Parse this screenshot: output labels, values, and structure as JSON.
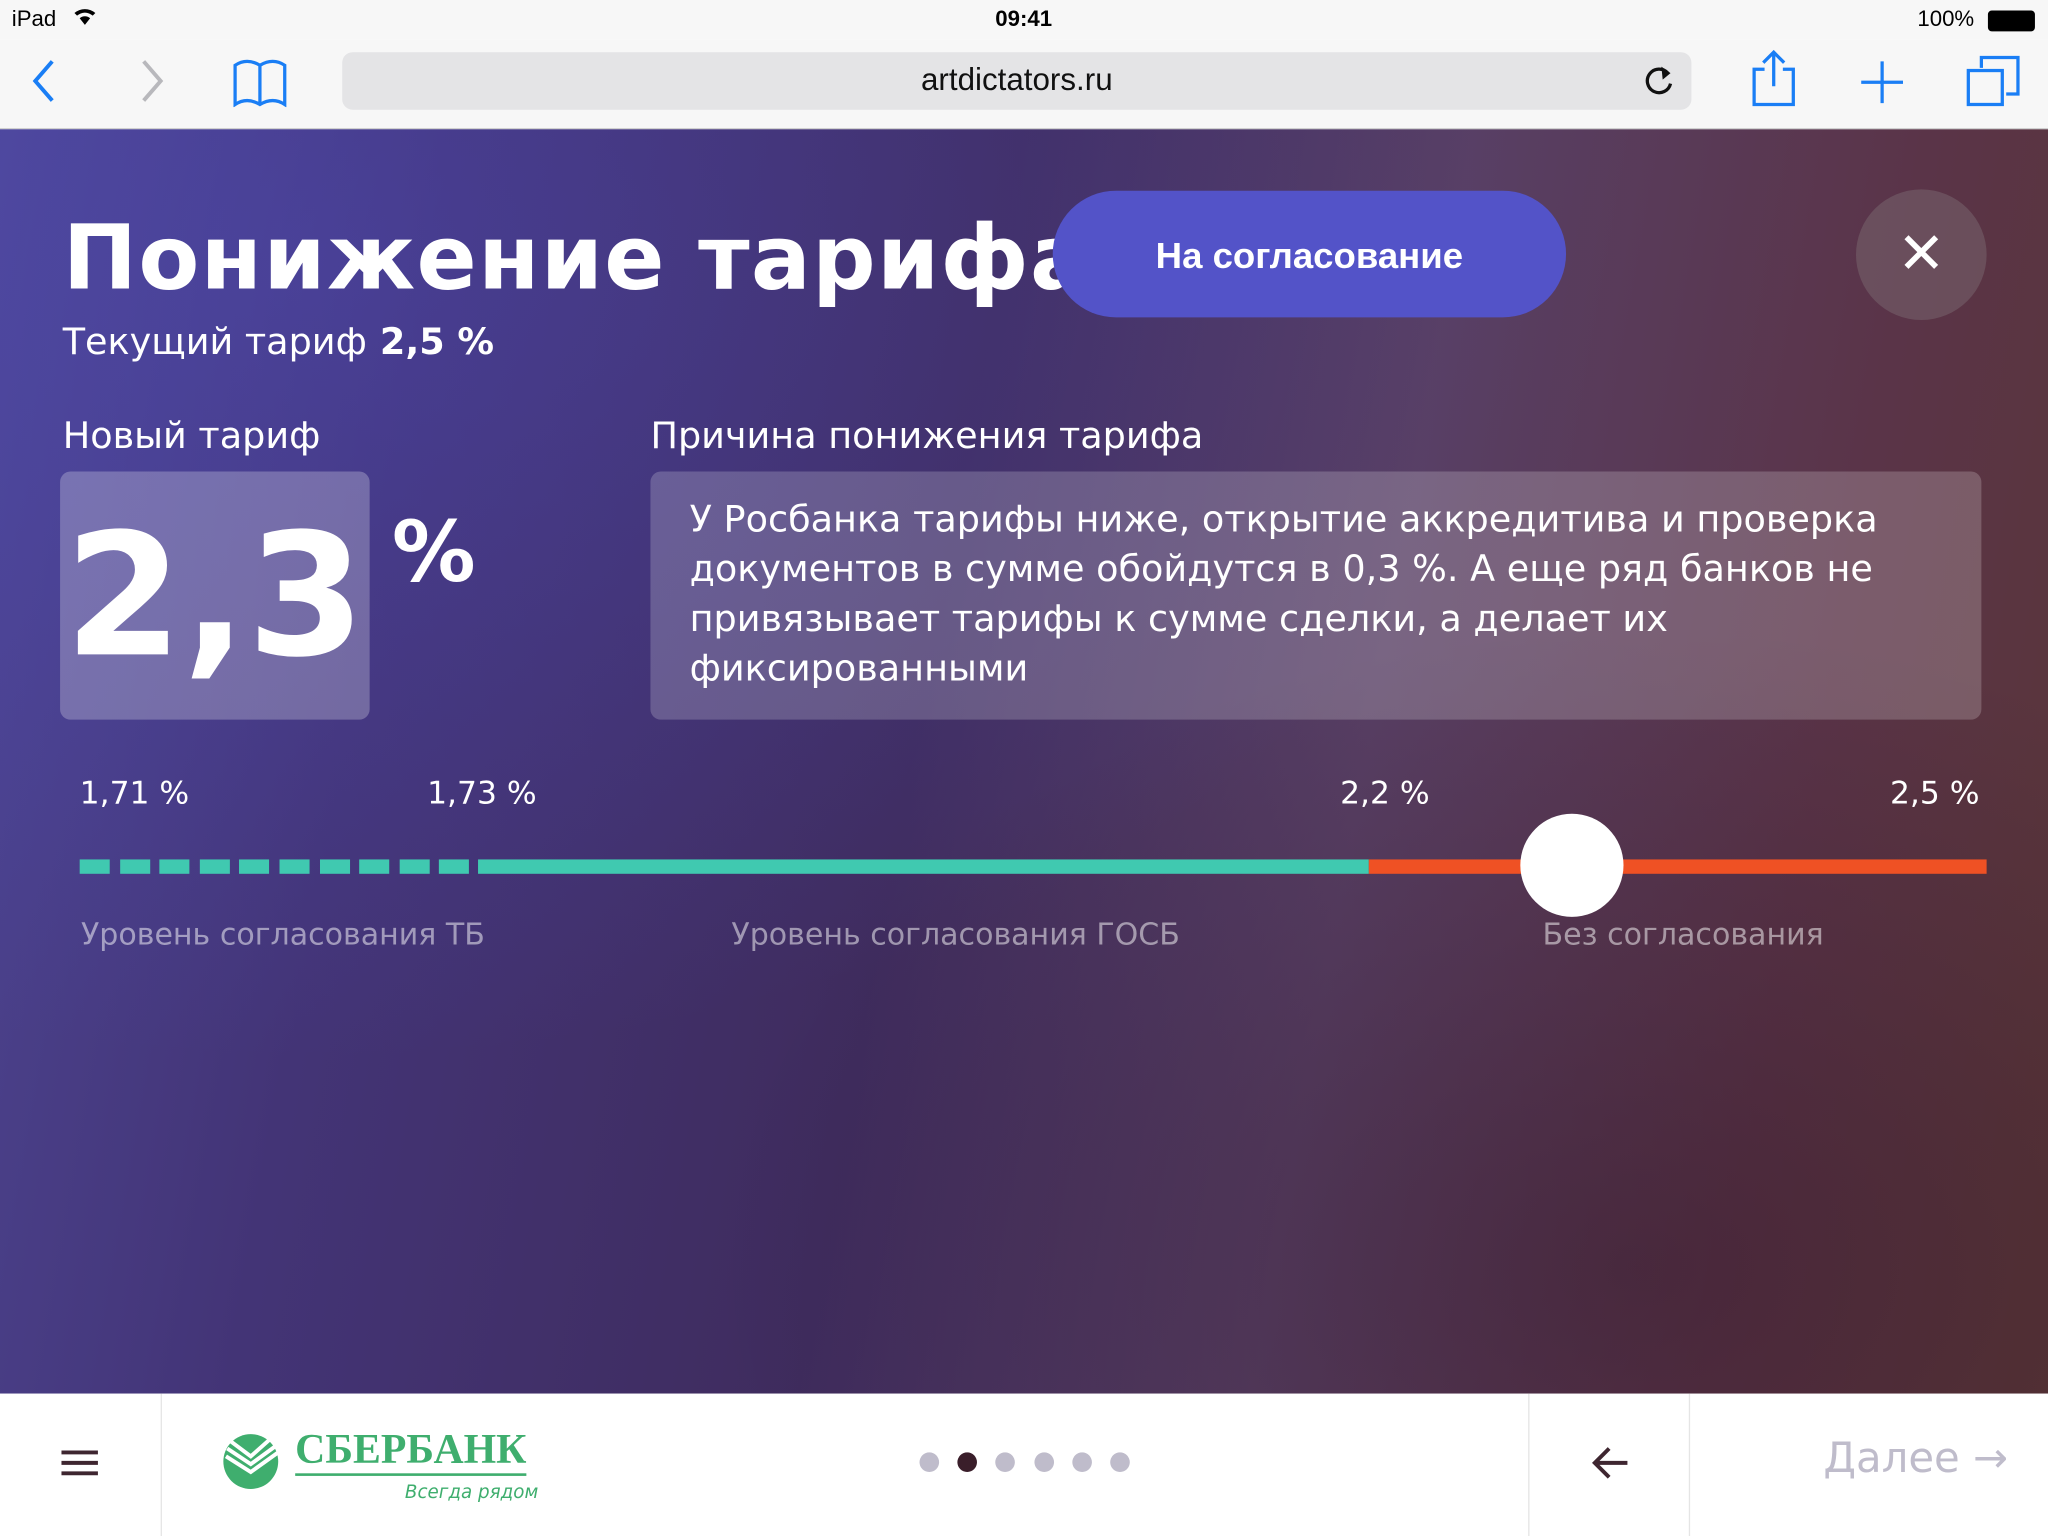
{
  "status_bar": {
    "device": "iPad",
    "time": "09:41",
    "battery": "100%"
  },
  "browser": {
    "url": "artdictators.ru",
    "icons": [
      "back-icon",
      "forward-icon",
      "bookmarks-icon",
      "reload-icon",
      "share-icon",
      "add-tab-icon",
      "tabs-icon"
    ]
  },
  "page": {
    "title": "Понижение тарифа",
    "approve_button": "На согласование",
    "current_tariff_label": "Текущий тариф",
    "current_tariff_value": "2,5 %",
    "new_tariff_label": "Новый тариф",
    "new_tariff_value": "2,3",
    "percent_sign": "%",
    "reason_label": "Причина понижения тарифа",
    "reason_text": "У Росбанка тарифы ниже, открытие аккредитива и проверка документов в сумме обойдутся в 0,3 %. А еще ряд банков не привязывает тарифы к сумме сделки, а делает их фиксированными",
    "slider": {
      "value": 2.3,
      "min": 1.71,
      "max": 2.5,
      "ticks": [
        "1,71 %",
        "1,73 %",
        "2,2 %",
        "2,5 %"
      ],
      "zones": [
        "Уровень согласования ТБ",
        "Уровень согласования ГОСБ",
        "Без согласования"
      ],
      "colors": {
        "approval": "#40c9b0",
        "no_approval": "#ef5124"
      }
    }
  },
  "footer": {
    "brand": "СБЕРБАНК",
    "tagline": "Всегда рядом",
    "brand_color": "#3fae6e",
    "pages": 6,
    "current_page": 2,
    "next_label": "Далее"
  }
}
